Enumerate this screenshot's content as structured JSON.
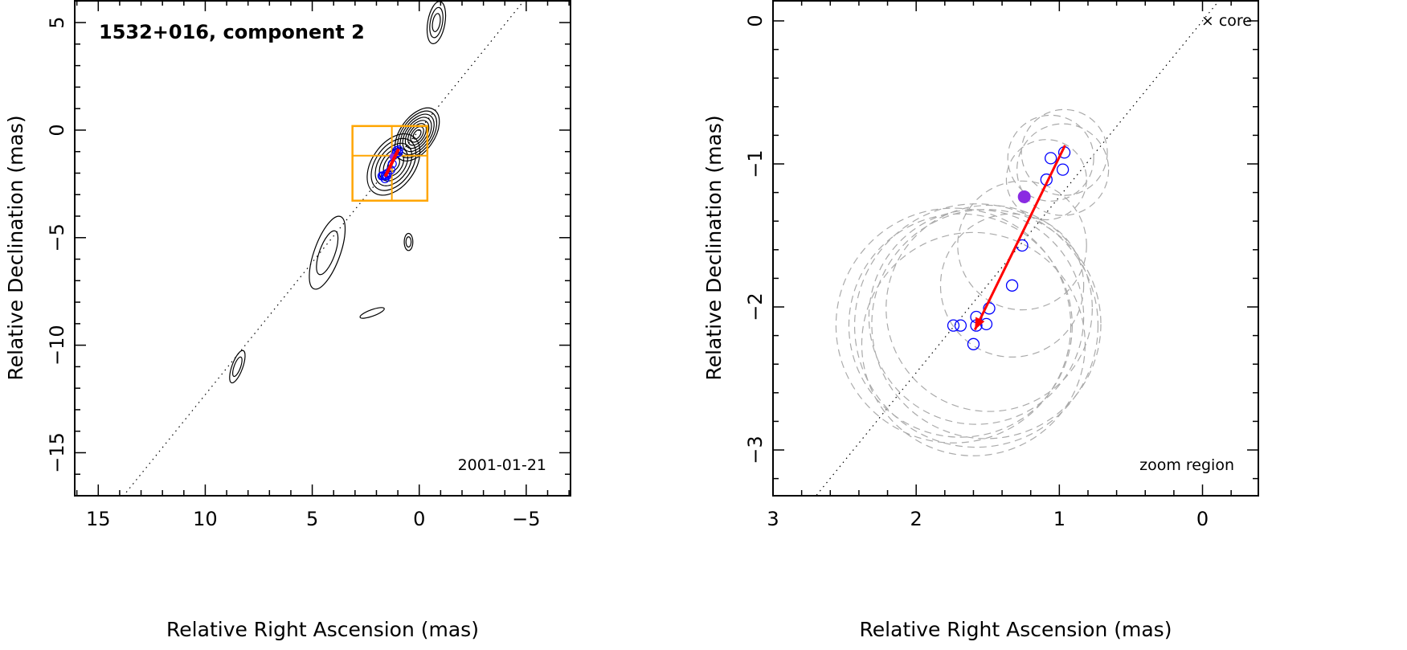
{
  "chart_data": [
    {
      "type": "scatter",
      "id": "left",
      "title": "1532+016, component 2",
      "annotation": "2001-01-21",
      "xlabel": "Relative Right Ascension (mas)",
      "ylabel": "Relative Declination (mas)",
      "xlim": [
        16.1,
        -7.07
      ],
      "ylim": [
        -17.0,
        6.05
      ],
      "xticks": [
        15,
        10,
        5,
        0,
        -5
      ],
      "yticks": [
        5,
        0,
        -5,
        -10,
        -15
      ],
      "xtick_labels": [
        "15",
        "10",
        "5",
        "0",
        "−5"
      ],
      "ytick_labels": [
        "5",
        "0",
        "−5",
        "−10",
        "−15"
      ],
      "minor_step": 1,
      "grid": false,
      "jet_axis_slope": -1.23,
      "contour_features": [
        {
          "ra": 0.1,
          "dec": -0.2,
          "a": 1.4,
          "b": 0.8,
          "angle": -55,
          "levels": 8
        },
        {
          "ra": 1.2,
          "dec": -1.6,
          "a": 1.6,
          "b": 1.0,
          "angle": -55,
          "levels": 6
        },
        {
          "ra": -0.8,
          "dec": 5.0,
          "a": 1.0,
          "b": 0.4,
          "angle": -80,
          "levels": 3
        },
        {
          "ra": 4.3,
          "dec": -5.7,
          "a": 1.8,
          "b": 0.6,
          "angle": -70,
          "levels": 2
        },
        {
          "ra": 0.5,
          "dec": -5.2,
          "a": 0.4,
          "b": 0.2,
          "angle": -90,
          "levels": 2
        },
        {
          "ra": 8.5,
          "dec": -11.0,
          "a": 0.8,
          "b": 0.25,
          "angle": -70,
          "levels": 2
        },
        {
          "ra": 2.2,
          "dec": -8.5,
          "a": 0.6,
          "b": 0.15,
          "angle": -20,
          "levels": 1
        }
      ],
      "zoom_box": {
        "ra": [
          3.12,
          -0.38
        ],
        "dec": [
          0.19,
          -3.28
        ],
        "cross_ra": 1.28,
        "cross_dec": -1.19,
        "color": "#ffa500"
      }
    },
    {
      "type": "scatter",
      "id": "right",
      "annotation": "zoom region",
      "core_label": "× core",
      "xlabel": "Relative Right Ascension (mas)",
      "ylabel": "Relative Declination (mas)",
      "xlim": [
        3.0,
        -0.39
      ],
      "ylim": [
        -3.32,
        0.146
      ],
      "xticks": [
        3,
        2,
        1,
        0
      ],
      "yticks": [
        0,
        -1,
        -2,
        -3
      ],
      "xtick_labels": [
        "3",
        "2",
        "1",
        "0"
      ],
      "ytick_labels": [
        "0",
        "−1",
        "−2",
        "−3"
      ],
      "minor_step": 0.2,
      "grid": false,
      "jet_axis_slope": -1.23,
      "points": [
        {
          "ra": 0.965,
          "dec": -0.92,
          "r": 0.3
        },
        {
          "ra": 0.976,
          "dec": -1.04,
          "r": 0.32
        },
        {
          "ra": 1.09,
          "dec": -1.11,
          "r": 0.28
        },
        {
          "ra": 1.06,
          "dec": -0.96,
          "r": 0.3
        },
        {
          "ra": 1.26,
          "dec": -1.57,
          "r": 0.45
        },
        {
          "ra": 1.33,
          "dec": -1.85,
          "r": 0.5
        },
        {
          "ra": 1.49,
          "dec": -2.01,
          "r": 0.72
        },
        {
          "ra": 1.51,
          "dec": -2.12,
          "r": 0.8
        },
        {
          "ra": 1.58,
          "dec": -2.07,
          "r": 0.75
        },
        {
          "ra": 1.58,
          "dec": -2.13,
          "r": 0.85
        },
        {
          "ra": 1.69,
          "dec": -2.13,
          "r": 0.78
        },
        {
          "ra": 1.74,
          "dec": -2.13,
          "r": 0.82
        },
        {
          "ra": 1.6,
          "dec": -2.26,
          "r": 0.78
        }
      ],
      "mean_point": {
        "ra": 1.245,
        "dec": -1.23
      },
      "arrow": {
        "from": [
          0.96,
          -0.87
        ],
        "to": [
          1.59,
          -2.16
        ]
      },
      "colors": {
        "points": "#0000ff",
        "mean": "#8a2be2",
        "arrow": "#ff0000",
        "circles": "#aaaaaa"
      }
    }
  ]
}
